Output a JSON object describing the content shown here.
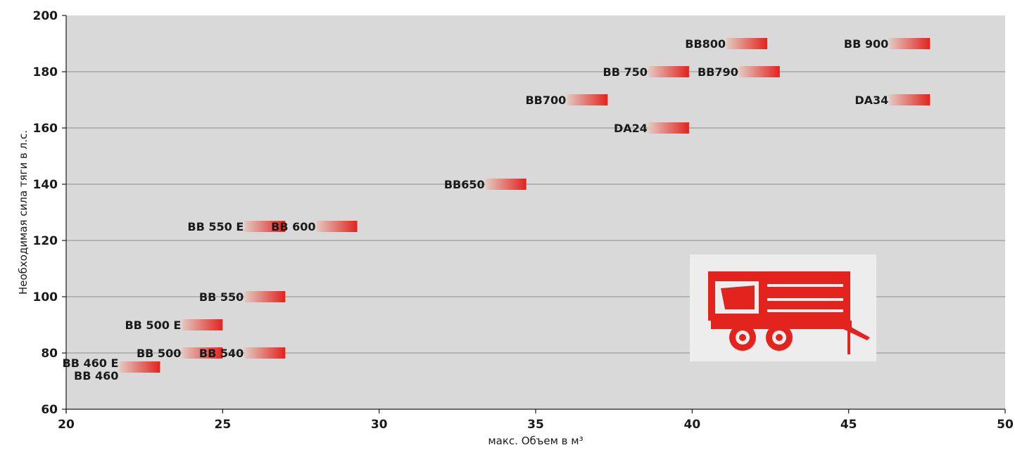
{
  "chart_data": {
    "type": "bar",
    "title": "",
    "xlabel": "макс. Объем в м³",
    "ylabel": "Необходимая сила тяги в л.с.",
    "xlim": [
      20,
      50
    ],
    "ylim": [
      60,
      200
    ],
    "xticks": [
      20,
      25,
      30,
      35,
      40,
      45,
      50
    ],
    "yticks": [
      60,
      80,
      100,
      120,
      140,
      160,
      180,
      200
    ],
    "grid": "horizontal",
    "colors": {
      "plot_background": "#d9d9d9",
      "bar_start": "#e3c9c0",
      "bar_end": "#e3231e",
      "gridline": "#8a8a8a",
      "trailer_icon": "#e3231e",
      "trailer_icon_background": "#ededed"
    },
    "icon": "trailer-icon",
    "series": [
      {
        "label": "BB 460",
        "volume": 23,
        "power": 75
      },
      {
        "label": "BB 460 E",
        "volume": 23,
        "power": 75
      },
      {
        "label": "BB 500",
        "volume": 25,
        "power": 80
      },
      {
        "label": "BB 540",
        "volume": 27,
        "power": 80
      },
      {
        "label": "BB 500 E",
        "volume": 25,
        "power": 90
      },
      {
        "label": "BB 550",
        "volume": 27,
        "power": 100
      },
      {
        "label": "BB 550 E",
        "volume": 27,
        "power": 125
      },
      {
        "label": "BB 600",
        "volume": 29.3,
        "power": 125
      },
      {
        "label": "BB650",
        "volume": 34.7,
        "power": 140
      },
      {
        "label": "DA24",
        "volume": 39.9,
        "power": 160
      },
      {
        "label": "BB700",
        "volume": 37.3,
        "power": 170
      },
      {
        "label": "BB 750",
        "volume": 39.9,
        "power": 180
      },
      {
        "label": "BB790",
        "volume": 42.8,
        "power": 180
      },
      {
        "label": "BB800",
        "volume": 42.4,
        "power": 190
      },
      {
        "label": "DA34",
        "volume": 47.6,
        "power": 170
      },
      {
        "label": "BB 900",
        "volume": 47.6,
        "power": 190
      }
    ]
  }
}
